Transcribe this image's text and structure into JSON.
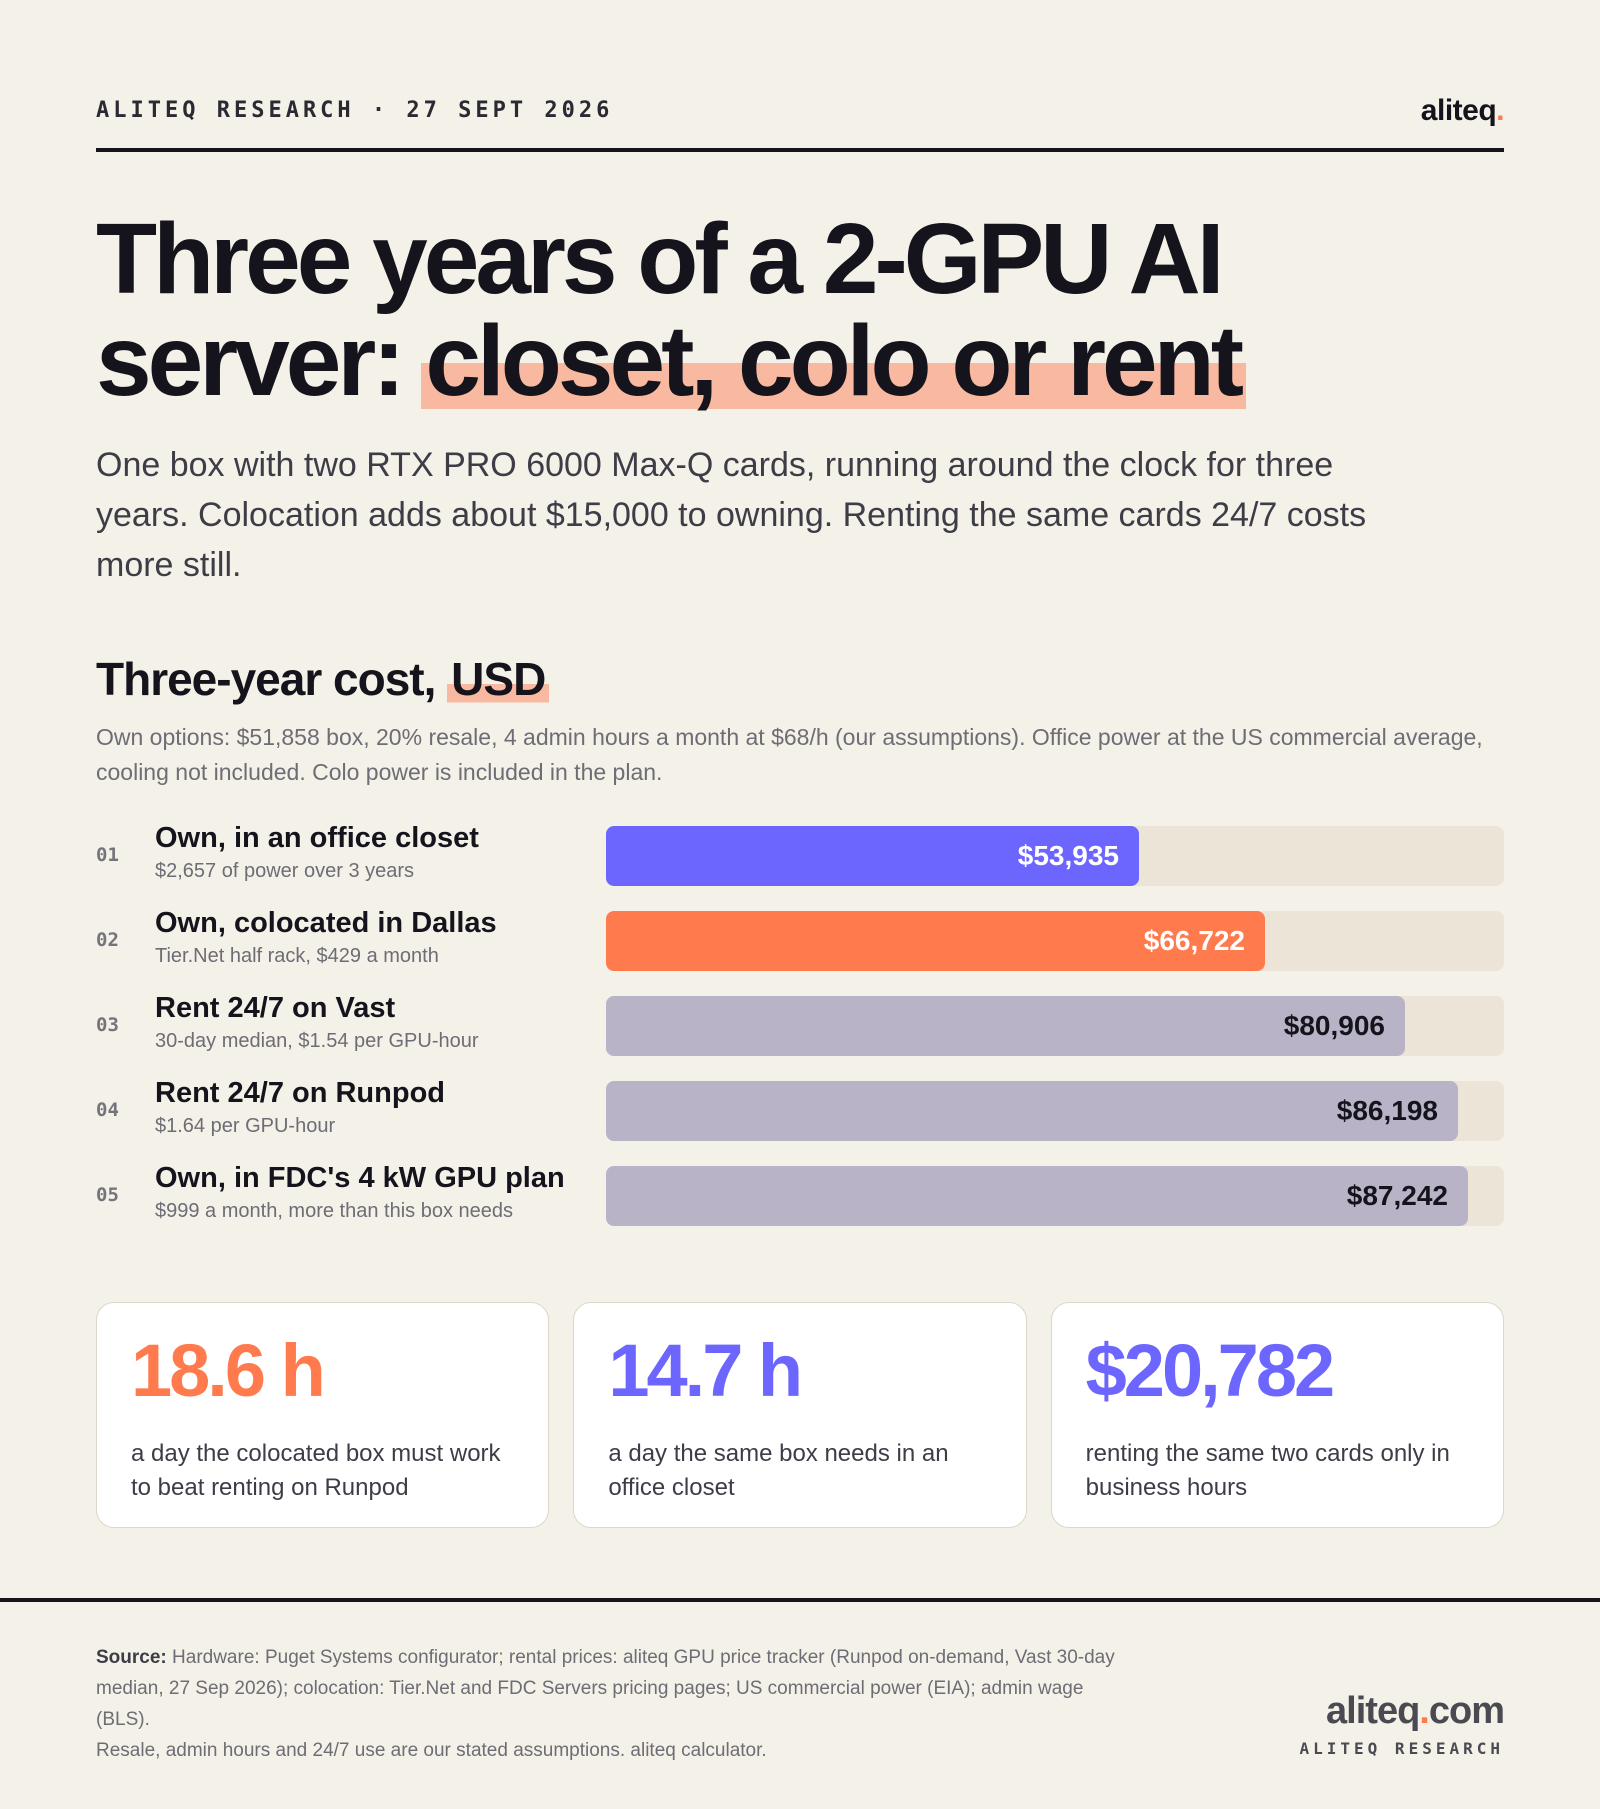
{
  "header": {
    "kicker": "ALITEQ RESEARCH · 27 SEPT 2026",
    "brand_name": "aliteq",
    "brand_dot": "."
  },
  "headline": {
    "line1": "Three years of a 2-GPU AI",
    "line2_plain": "server: ",
    "line2_highlight": "closet, colo or rent"
  },
  "lede": "One box with two RTX PRO 6000 Max-Q cards, running around the clock for three years. Colocation adds about $15,000 to owning. Renting the same cards 24/7 costs more still.",
  "section": {
    "title_plain": "Three-year cost, ",
    "title_highlight": "USD",
    "note": "Own options: $51,858 box, 20% resale, 4 admin hours a month at $68/h (our assumptions). Office power at the US commercial average, cooling not included. Colo power is included in the plan."
  },
  "chart_data": {
    "type": "bar",
    "orientation": "horizontal",
    "title": "Three-year cost, USD",
    "xlim": [
      0,
      90900
    ],
    "categories": [
      "Own, in an office closet",
      "Own, colocated in Dallas",
      "Rent 24/7 on Vast",
      "Rent 24/7 on Runpod",
      "Own, in FDC's 4 kW GPU plan"
    ],
    "values": [
      53935,
      66722,
      80906,
      86198,
      87242
    ],
    "rows": [
      {
        "num": "01",
        "label": "Own, in an office closet",
        "sub": "$2,657 of power over 3 years",
        "value": 53935,
        "value_label": "$53,935",
        "color": "#6c66ff",
        "text_color": "#ffffff"
      },
      {
        "num": "02",
        "label": "Own, colocated in Dallas",
        "sub": "Tier.Net half rack, $429 a month",
        "value": 66722,
        "value_label": "$66,722",
        "color": "#ff7a4d",
        "text_color": "#ffffff"
      },
      {
        "num": "03",
        "label": "Rent 24/7 on Vast",
        "sub": "30-day median, $1.54 per GPU-hour",
        "value": 80906,
        "value_label": "$80,906",
        "color": "#b8b3c7",
        "text_color": "#15141c"
      },
      {
        "num": "04",
        "label": "Rent 24/7 on Runpod",
        "sub": "$1.64 per GPU-hour",
        "value": 86198,
        "value_label": "$86,198",
        "color": "#b8b3c7",
        "text_color": "#15141c"
      },
      {
        "num": "05",
        "label": "Own, in FDC's 4 kW GPU plan",
        "sub": "$999 a month, more than this box needs",
        "value": 87242,
        "value_label": "$87,242",
        "color": "#b8b3c7",
        "text_color": "#15141c"
      }
    ],
    "track_color": "#ebe4d7"
  },
  "stats": [
    {
      "value": "18.6 h",
      "caption": "a day the colocated box must work to beat renting on Runpod",
      "color": "#ff7a4d"
    },
    {
      "value": "14.7 h",
      "caption": "a day the same box needs in an office closet",
      "color": "#6c66ff"
    },
    {
      "value": "$20,782",
      "caption": "renting the same two cards only in business hours",
      "color": "#6c66ff"
    }
  ],
  "footer": {
    "source_label": "Source:",
    "source_text": " Hardware: Puget Systems configurator; rental prices: aliteq GPU price tracker (Runpod on-demand, Vast 30-day median, 27 Sep 2026); colocation: Tier.Net and FDC Servers pricing pages; US commercial power (EIA); admin wage (BLS).",
    "assumptions": "Resale, admin hours and 24/7 use are our stated assumptions. aliteq calculator.",
    "site_name": "aliteq",
    "site_dot": ".",
    "site_tld": "com",
    "tagline": "ALITEQ RESEARCH"
  }
}
